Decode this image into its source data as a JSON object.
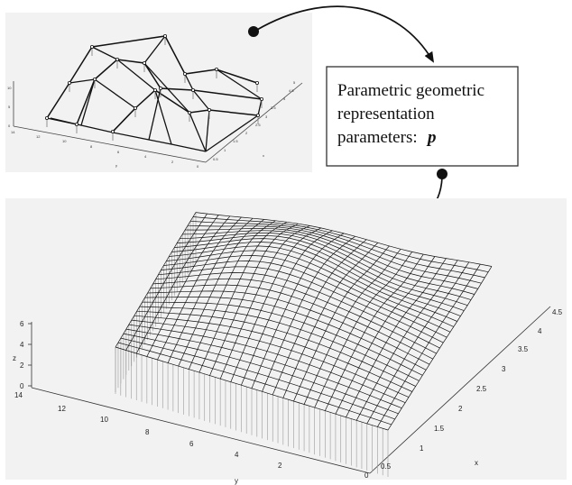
{
  "callout": {
    "line1": "Parametric geometric",
    "line2": "representation",
    "line3": "parameters:",
    "symbol": "p"
  },
  "top_plot": {
    "zticks": [
      "10",
      "5",
      "0"
    ],
    "yticks": [
      "14",
      "12",
      "10",
      "8",
      "6",
      "4",
      "2",
      "0"
    ],
    "xticks": [
      "5",
      "4.5",
      "4",
      "3.5",
      "3",
      "2.5",
      "2",
      "1.5",
      "1",
      "0.5"
    ],
    "ylabel": "y",
    "xlabel": "x"
  },
  "bottom_plot": {
    "zlabel": "z",
    "zticks": [
      "6",
      "4",
      "2",
      "0"
    ],
    "yticks": [
      "14",
      "12",
      "10",
      "8",
      "6",
      "4",
      "2",
      "0"
    ],
    "xticks": [
      "4.5",
      "4",
      "3.5",
      "3",
      "2.5",
      "2",
      "1.5",
      "1",
      "0.5"
    ],
    "ylabel": "y",
    "xlabel": "x"
  },
  "colors": {
    "panel": "#f2f2f2",
    "mesh": "#111111",
    "pillars": "#9a9a9a",
    "arrow": "#111111"
  }
}
